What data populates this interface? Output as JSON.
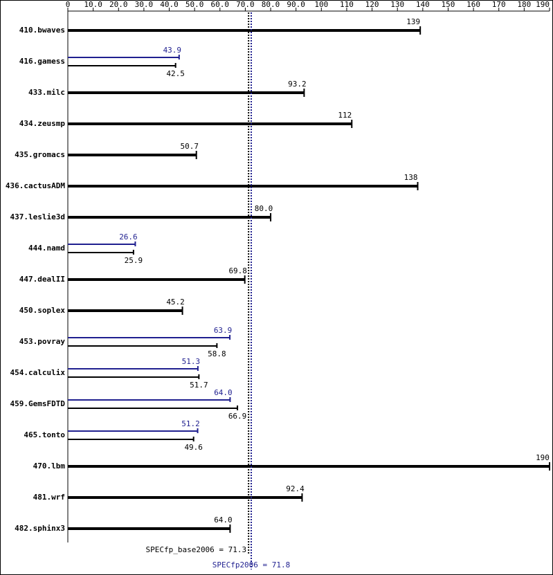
{
  "chart_data": {
    "type": "bar",
    "categories": [
      "410.bwaves",
      "416.gamess",
      "433.milc",
      "434.zeusmp",
      "435.gromacs",
      "436.cactusADM",
      "437.leslie3d",
      "444.namd",
      "447.dealII",
      "450.soplex",
      "453.povray",
      "454.calculix",
      "459.GemsFDTD",
      "465.tonto",
      "470.lbm",
      "481.wrf",
      "482.sphinx3"
    ],
    "series": [
      {
        "color": "#000000",
        "values": [
          139,
          42.5,
          93.2,
          112,
          50.7,
          138,
          80.0,
          25.9,
          69.8,
          45.2,
          58.8,
          51.7,
          66.9,
          49.6,
          190,
          92.4,
          64.0
        ],
        "value_labels": [
          "139",
          "42.5",
          "93.2",
          "112",
          "50.7",
          "138",
          "80.0",
          "25.9",
          "69.8",
          "45.2",
          "58.8",
          "51.7",
          "66.9",
          "49.6",
          "190",
          "92.4",
          "64.0"
        ]
      },
      {
        "color": "#1f1f8f",
        "values": [
          null,
          43.9,
          null,
          null,
          null,
          null,
          null,
          26.6,
          null,
          null,
          63.9,
          51.3,
          64.0,
          51.2,
          null,
          null,
          null
        ],
        "value_labels": [
          null,
          "43.9",
          null,
          null,
          null,
          null,
          null,
          "26.6",
          null,
          null,
          "63.9",
          "51.3",
          "64.0",
          "51.2",
          null,
          null,
          null
        ]
      }
    ],
    "xlim": [
      0,
      190
    ],
    "xticks": [
      0,
      {
        "value": 10,
        "label": "10.0"
      },
      {
        "value": 20,
        "label": "20.0"
      },
      {
        "value": 30,
        "label": "30.0"
      },
      {
        "value": 40,
        "label": "40.0"
      },
      {
        "value": 50,
        "label": "50.0"
      },
      {
        "value": 60,
        "label": "60.0"
      },
      {
        "value": 70,
        "label": "70.0"
      },
      {
        "value": 80,
        "label": "80.0"
      },
      {
        "value": 90,
        "label": "90.0"
      },
      100,
      110,
      120,
      130,
      140,
      150,
      160,
      170,
      180,
      190
    ],
    "reference_lines": [
      {
        "label": "SPECfp_base2006 = 71.3",
        "value": 71.3,
        "color": "#000000"
      },
      {
        "label": "SPECfp2006 = 71.8",
        "value": 71.8,
        "color": "#1f1f8f"
      }
    ]
  }
}
